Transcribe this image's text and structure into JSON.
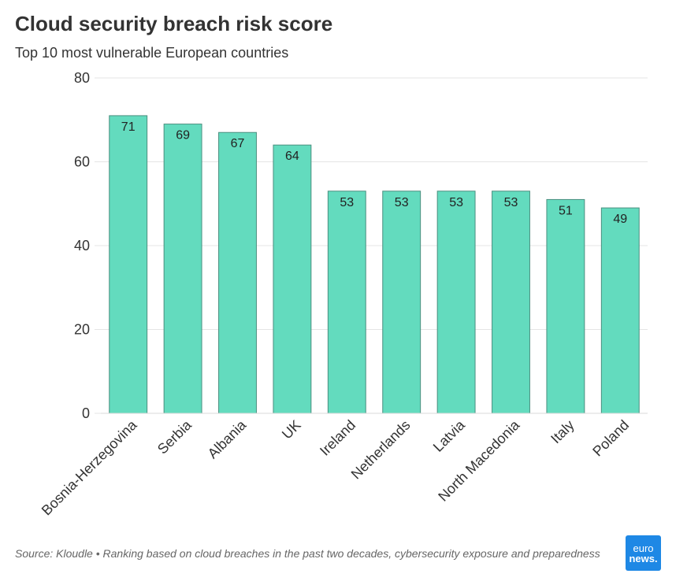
{
  "header": {
    "title": "Cloud security breach risk score",
    "subtitle": "Top 10 most vulnerable European countries"
  },
  "footer": {
    "source": "Source: Kloudle • Ranking based on cloud breaches in the past two decades, cybersecurity exposure and preparedness"
  },
  "logo": {
    "line1": "euro",
    "line2": "news."
  },
  "colors": {
    "bar_fill": "#63dbbe",
    "bar_stroke": "#4b8f7f",
    "grid": "#e5e5e5",
    "logo_bg": "#1e88e5"
  },
  "chart_data": {
    "type": "bar",
    "title": "Cloud security breach risk score",
    "subtitle": "Top 10 most vulnerable European countries",
    "categories": [
      "Bosnia-Herzegovina",
      "Serbia",
      "Albania",
      "UK",
      "Ireland",
      "Netherlands",
      "Latvia",
      "North Macedonia",
      "Italy",
      "Poland"
    ],
    "values": [
      71,
      69,
      67,
      64,
      53,
      53,
      53,
      53,
      51,
      49
    ],
    "ylim": [
      0,
      80
    ],
    "yticks": [
      0,
      20,
      40,
      60,
      80
    ],
    "grid": true,
    "data_labels": true
  }
}
